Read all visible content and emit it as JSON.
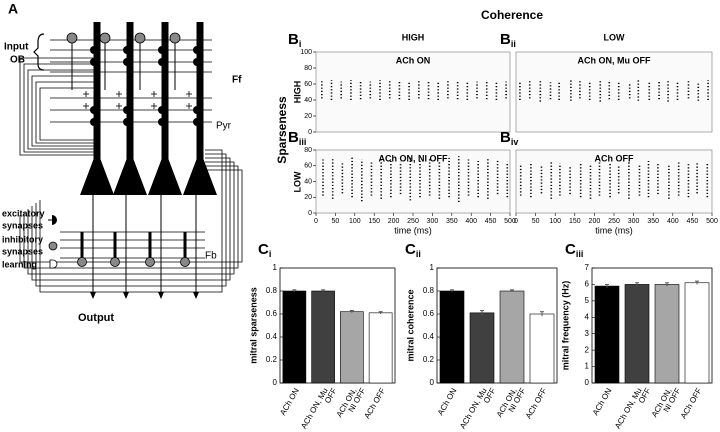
{
  "panel_a": {
    "label": "A",
    "input": [
      "Input",
      "OB"
    ],
    "ff": "Ff",
    "pyr": "Pyr",
    "fb": "Fb",
    "legend": [
      [
        "excitatory",
        "synapses"
      ],
      [
        "inhibitory",
        "synapses"
      ],
      [
        "learning"
      ]
    ],
    "output": "Output"
  },
  "header": {
    "title": "Coherence",
    "columns": [
      "HIGH",
      "LOW"
    ],
    "side": "Sparseness",
    "rows": [
      "HIGH",
      "LOW"
    ]
  },
  "chart_data": [
    {
      "type": "raster",
      "label": {
        "letter": "B",
        "sub": "i"
      },
      "title": "ACh ON",
      "x": [
        15,
        40,
        65,
        90,
        115,
        140,
        165,
        190,
        215,
        240,
        265,
        290,
        315,
        340,
        365,
        390,
        415,
        440,
        465,
        490
      ],
      "ymin": [
        42,
        40,
        42,
        40,
        41,
        42,
        40,
        42,
        41,
        40,
        42,
        41,
        40,
        42,
        41,
        40,
        42,
        41,
        40,
        42
      ],
      "ymax": [
        64,
        65,
        63,
        65,
        64,
        63,
        65,
        64,
        65,
        63,
        64,
        65,
        63,
        64,
        65,
        64,
        63,
        65,
        64,
        63
      ],
      "xlim": [
        0,
        500
      ],
      "ylim": [
        0,
        100
      ],
      "yticks": [
        0,
        20,
        40,
        60,
        80,
        100
      ]
    },
    {
      "type": "raster",
      "label": {
        "letter": "B",
        "sub": "ii"
      },
      "title": "ACh ON, Mu OFF",
      "x": [
        10,
        35,
        62,
        88,
        110,
        140,
        163,
        188,
        215,
        238,
        262,
        290,
        312,
        340,
        365,
        388,
        412,
        440,
        465,
        490
      ],
      "ymin": [
        40,
        42,
        38,
        41,
        40,
        39,
        42,
        40,
        38,
        41,
        40,
        42,
        39,
        40,
        41,
        38,
        40,
        42,
        39,
        40
      ],
      "ymax": [
        62,
        64,
        65,
        62,
        63,
        66,
        64,
        62,
        65,
        63,
        64,
        62,
        66,
        63,
        64,
        65,
        62,
        64,
        63,
        65
      ],
      "xlim": [
        0,
        500
      ],
      "ylim": [
        0,
        100
      ]
    },
    {
      "type": "raster",
      "label": {
        "letter": "B",
        "sub": "iii"
      },
      "title": "ACh ON, NI OFF",
      "x": [
        18,
        43,
        68,
        93,
        118,
        143,
        168,
        193,
        218,
        243,
        268,
        293,
        318,
        343,
        368,
        393,
        418,
        443,
        468,
        493
      ],
      "ymin": [
        22,
        18,
        25,
        20,
        15,
        22,
        18,
        20,
        24,
        16,
        20,
        22,
        18,
        20,
        14,
        22,
        20,
        18,
        24,
        20
      ],
      "ymax": [
        68,
        70,
        65,
        72,
        68,
        66,
        70,
        68,
        65,
        72,
        68,
        70,
        66,
        70,
        72,
        68,
        66,
        70,
        68,
        65
      ],
      "xlim": [
        0,
        500
      ],
      "ylim": [
        0,
        80
      ],
      "yticks": [
        0,
        20,
        40,
        60,
        80
      ],
      "xticks": [
        0,
        50,
        100,
        150,
        200,
        250,
        300,
        350,
        400,
        450,
        500
      ],
      "xlabel": "time (ms)"
    },
    {
      "type": "raster",
      "label": {
        "letter": "B",
        "sub": "iv"
      },
      "title": "ACh OFF",
      "x": [
        12,
        38,
        65,
        90,
        112,
        138,
        165,
        190,
        213,
        240,
        262,
        288,
        315,
        338,
        362,
        390,
        415,
        440,
        462,
        488
      ],
      "ymin": [
        22,
        20,
        25,
        18,
        22,
        24,
        20,
        18,
        22,
        20,
        25,
        18,
        22,
        20,
        24,
        18,
        22,
        20,
        25,
        20
      ],
      "ymax": [
        62,
        65,
        60,
        66,
        63,
        60,
        65,
        62,
        66,
        64,
        60,
        65,
        62,
        66,
        63,
        60,
        65,
        62,
        64,
        63
      ],
      "xlim": [
        0,
        500
      ],
      "ylim": [
        0,
        80
      ],
      "xticks": [
        0,
        50,
        100,
        150,
        200,
        250,
        300,
        350,
        400,
        450,
        500
      ],
      "xlabel": "time (ms)"
    },
    {
      "type": "bar",
      "label": {
        "letter": "C",
        "sub": "i"
      },
      "ylabel": "mitral sparseness",
      "categories": [
        [
          "ACh ON"
        ],
        [
          "ACh ON, Mu",
          "OFF"
        ],
        [
          "ACh ON,",
          "NI OFF"
        ],
        [
          "ACh OFF"
        ]
      ],
      "values": [
        0.8,
        0.8,
        0.62,
        0.61
      ],
      "errors": [
        0.01,
        0.01,
        0.01,
        0.01
      ],
      "colors": [
        "#000000",
        "#404040",
        "#a6a6a6",
        "#ffffff"
      ],
      "ylim": [
        0,
        1
      ],
      "yticks": [
        0,
        0.2,
        0.4,
        0.6,
        0.8,
        1
      ]
    },
    {
      "type": "bar",
      "label": {
        "letter": "C",
        "sub": "ii"
      },
      "ylabel": "mitral coherence",
      "categories": [
        [
          "ACh ON"
        ],
        [
          "ACh ON, Mu",
          "OFF"
        ],
        [
          "ACh ON,",
          "NI OFF"
        ],
        [
          "ACh OFF"
        ]
      ],
      "values": [
        0.8,
        0.61,
        0.8,
        0.6
      ],
      "errors": [
        0.01,
        0.02,
        0.01,
        0.02
      ],
      "colors": [
        "#000000",
        "#404040",
        "#a6a6a6",
        "#ffffff"
      ],
      "ylim": [
        0,
        1
      ],
      "yticks": [
        0,
        0.2,
        0.4,
        0.6,
        0.8,
        1
      ]
    },
    {
      "type": "bar",
      "label": {
        "letter": "C",
        "sub": "iii"
      },
      "ylabel": "mitral frequency (Hz)",
      "categories": [
        [
          "ACh ON"
        ],
        [
          "ACh ON, Mu",
          "OFF"
        ],
        [
          "ACh ON,",
          "NI OFF"
        ],
        [
          "ACh OFF"
        ]
      ],
      "values": [
        5.9,
        6.0,
        6.0,
        6.1
      ],
      "errors": [
        0.1,
        0.1,
        0.1,
        0.1
      ],
      "colors": [
        "#000000",
        "#404040",
        "#a6a6a6",
        "#ffffff"
      ],
      "ylim": [
        0,
        7
      ],
      "yticks": [
        0,
        1,
        2,
        3,
        4,
        5,
        6,
        7
      ]
    }
  ]
}
